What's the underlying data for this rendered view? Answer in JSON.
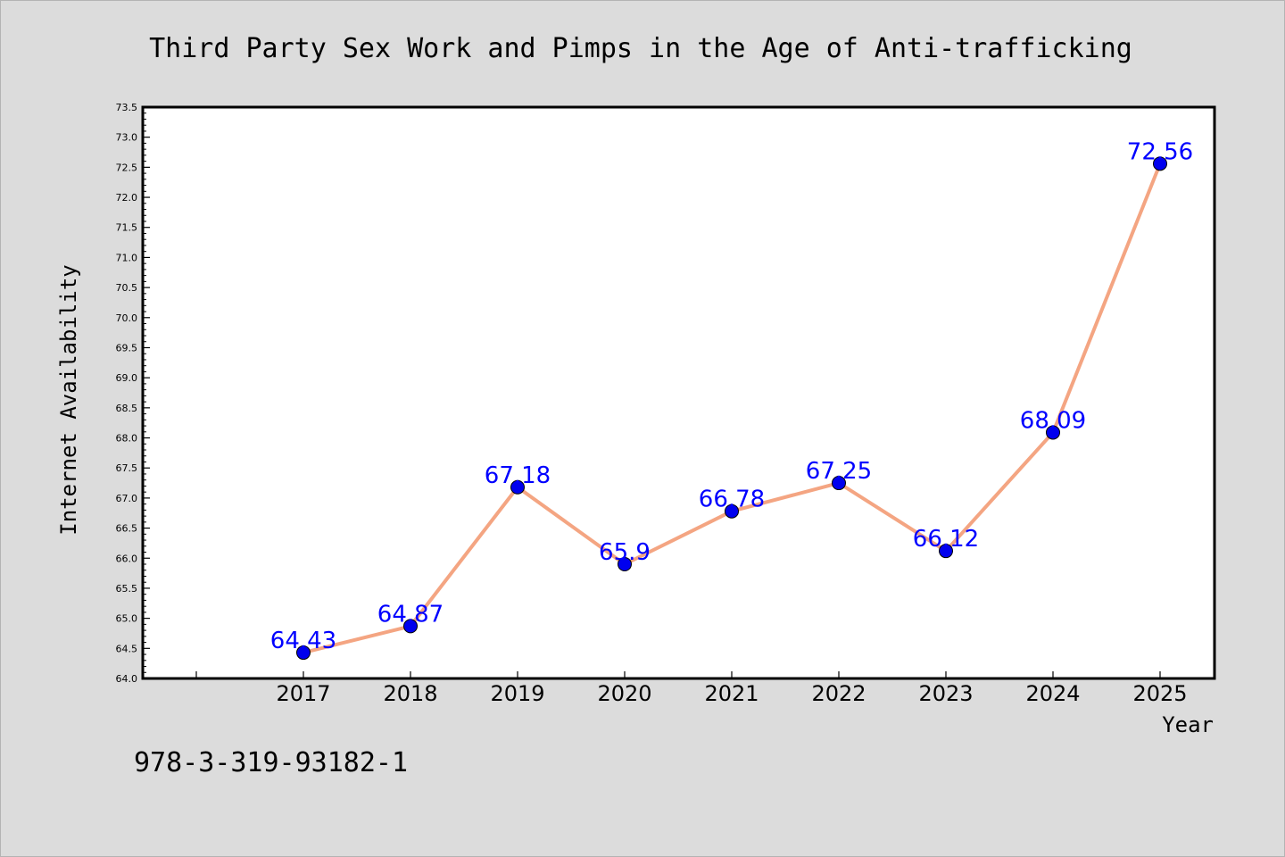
{
  "chart_data": {
    "type": "line",
    "title": "Third Party Sex Work and Pimps in the Age of Anti-trafficking",
    "xlabel": "Year",
    "ylabel": "Internet Availability",
    "categories": [
      "2017",
      "2018",
      "2019",
      "2020",
      "2021",
      "2022",
      "2023",
      "2024",
      "2025"
    ],
    "series": [
      {
        "values": [
          64.43,
          64.87,
          67.18,
          65.9,
          66.78,
          67.25,
          66.12,
          68.09,
          72.56
        ],
        "labels": [
          "64.43",
          "64.87",
          "67.18",
          "65.9",
          "66.78",
          "67.25",
          "66.12",
          "68.09",
          "72.56"
        ]
      }
    ],
    "ylim": [
      64.0,
      73.5
    ],
    "yticks": [
      "64.0",
      "64.5",
      "65.0",
      "65.5",
      "66.0",
      "66.5",
      "67.0",
      "67.5",
      "68.0",
      "68.5",
      "69.0",
      "69.5",
      "70.0",
      "70.5",
      "71.0",
      "71.5",
      "72.0",
      "72.5",
      "73.0",
      "73.5"
    ],
    "grid": false,
    "colors": {
      "line": "#f4a582",
      "marker": "#0000ee",
      "label": "#0000ff",
      "background": "#dcdcdc",
      "plot_area": "#ffffff"
    }
  },
  "footer": {
    "isbn": "978-3-319-93182-1"
  }
}
